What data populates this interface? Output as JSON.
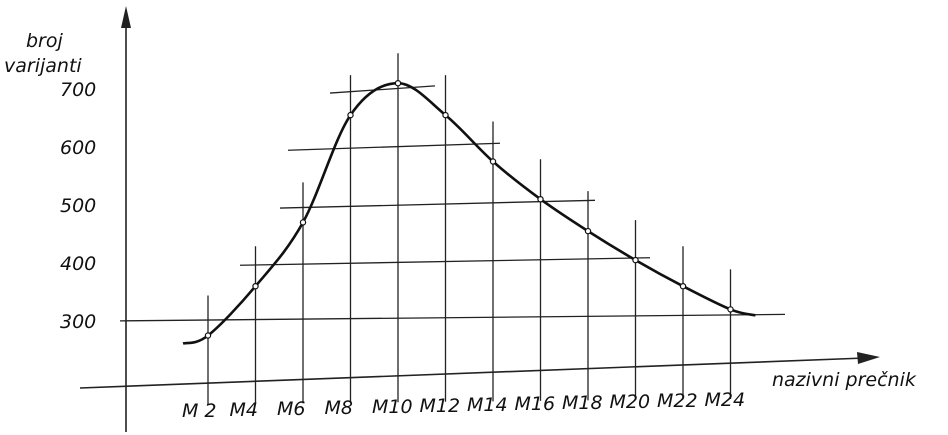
{
  "chart_data": {
    "type": "line",
    "ylabel_line1": "broj",
    "ylabel_line2": "varijanti",
    "xlabel": "nazivni prečnik",
    "categories": [
      "M 2",
      "M4",
      "M6",
      "M8",
      "M10",
      "M12",
      "M14",
      "M16",
      "M18",
      "M20",
      "M22",
      "M24"
    ],
    "y_ticks": [
      "300",
      "400",
      "500",
      "600",
      "700"
    ],
    "ylim": [
      250,
      720
    ],
    "series": [
      {
        "values": [
          275,
          360,
          470,
          655,
          710,
          655,
          575,
          510,
          455,
          405,
          360,
          320
        ]
      }
    ],
    "grid": "crosshair lines through data points"
  }
}
